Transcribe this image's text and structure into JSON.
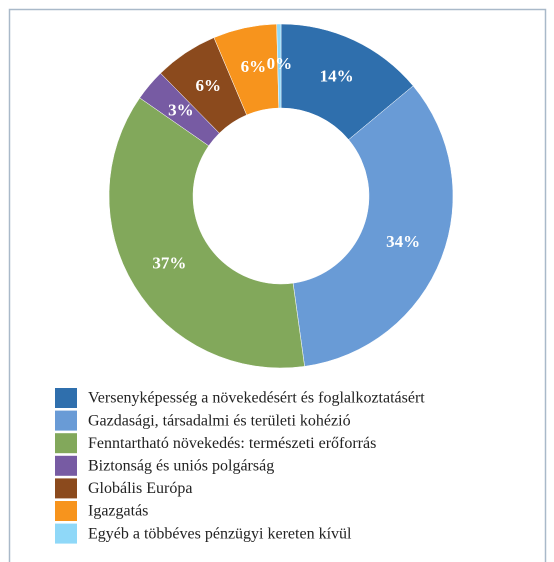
{
  "chart_data": {
    "type": "donut",
    "categories": [
      "Versenyképesség a növekedésért és foglalkoztatásért",
      "Gazdasági, társadalmi és területi kohézió",
      "Fenntartható növekedés: természeti erőforrás",
      "Biztonság és uniós polgárság",
      "Globális Európa",
      "Igazgatás",
      "Egyéb a többéves pénzügyi kereten kívül"
    ],
    "values": [
      14,
      34,
      37,
      3,
      6,
      6,
      0.4
    ],
    "value_labels": [
      "14%",
      "34%",
      "37%",
      "3%",
      "6%",
      "6%",
      "0%"
    ],
    "colors": [
      "#2f6fad",
      "#699bd6",
      "#82a85b",
      "#775ba3",
      "#8b4a1d",
      "#f7941d",
      "#8fd8f8"
    ]
  }
}
